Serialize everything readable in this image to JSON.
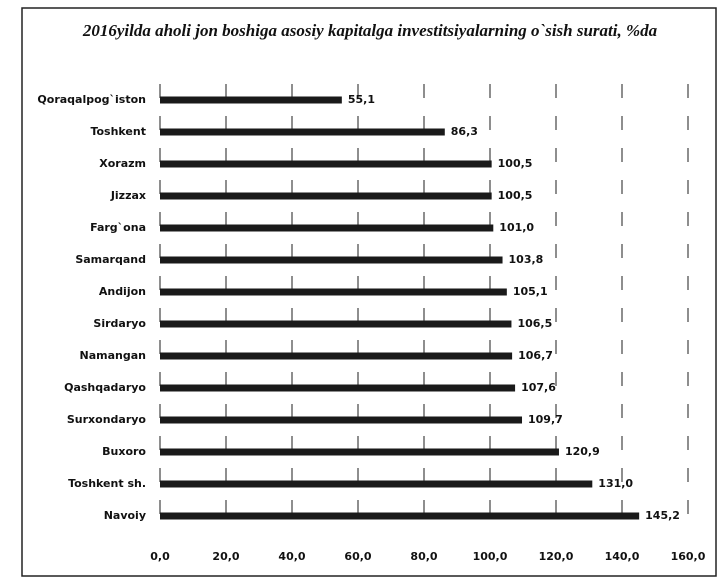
{
  "chart_data": {
    "type": "bar",
    "orientation": "horizontal",
    "title": "2016yilda aholi jon boshiga asosiy kapitalga investitsiyalarning o`sish surati, %da",
    "categories": [
      "Qoraqalpog`iston",
      "Toshkent",
      "Xorazm",
      "Jizzax",
      "Farg`ona",
      "Samarqand",
      "Andijon",
      "Sirdaryo",
      "Namangan",
      "Qashqadaryo",
      "Surxondaryo",
      "Buxoro",
      "Toshkent sh.",
      "Navoiy"
    ],
    "values": [
      55.1,
      86.3,
      100.5,
      100.5,
      101.0,
      103.8,
      105.1,
      106.5,
      106.7,
      107.6,
      109.7,
      120.9,
      131.0,
      145.2
    ],
    "value_labels": [
      "55,1",
      "86,3",
      "100,5",
      "100,5",
      "101,0",
      "103,8",
      "105,1",
      "106,5",
      "106,7",
      "107,6",
      "109,7",
      "120,9",
      "131,0",
      "145,2"
    ],
    "color": "#1a1a1a",
    "xlim": [
      0,
      160
    ],
    "xticks": [
      {
        "value": 0,
        "label": "0,0"
      },
      {
        "value": 20,
        "label": "20,0"
      },
      {
        "value": 40,
        "label": "40,0"
      },
      {
        "value": 60,
        "label": "60,0"
      },
      {
        "value": 80,
        "label": "80,0"
      },
      {
        "value": 100,
        "label": "100,0"
      },
      {
        "value": 120,
        "label": "120,0"
      },
      {
        "value": 140,
        "label": "140,0"
      },
      {
        "value": 160,
        "label": "160,0"
      }
    ],
    "grid": true
  }
}
